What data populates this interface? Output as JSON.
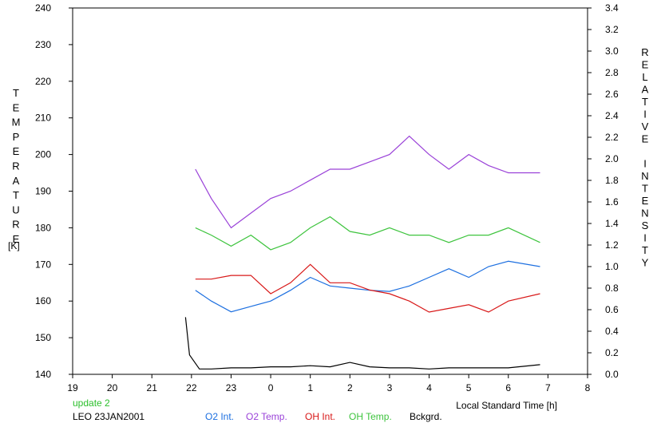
{
  "chart_data": {
    "type": "line",
    "title": "",
    "xlabel": "Local Standard Time [h]",
    "ylabel_left": "TEMPERATURE",
    "ylabel_left_unit": "[K]",
    "ylabel_right": "RELATIVE INTENSITY",
    "x_tick_labels": [
      "19",
      "20",
      "21",
      "22",
      "23",
      "0",
      "1",
      "2",
      "3",
      "4",
      "5",
      "6",
      "7",
      "8"
    ],
    "x_tick_positions": [
      19,
      20,
      21,
      22,
      23,
      24,
      25,
      26,
      27,
      28,
      29,
      30,
      31,
      32
    ],
    "xlim": [
      19,
      32
    ],
    "ylim_left": [
      140,
      240
    ],
    "y_left_ticks": [
      "140",
      "150",
      "160",
      "170",
      "180",
      "190",
      "200",
      "210",
      "220",
      "230",
      "240"
    ],
    "ylim_right": [
      0,
      3.4
    ],
    "y_right_ticks": [
      "0.0",
      "0.2",
      "0.4",
      "0.6",
      "0.8",
      "1.0",
      "1.2",
      "1.4",
      "1.6",
      "1.8",
      "2.0",
      "2.2",
      "2.4",
      "2.6",
      "2.8",
      "3.0",
      "3.2",
      "3.4"
    ],
    "grid": false,
    "annotations": {
      "update": "update 2",
      "station": "LEO 23JAN2001"
    },
    "legend": [
      "O2 Int.",
      "O2 Temp.",
      "OH Int.",
      "OH Temp.",
      "Bckgrd."
    ],
    "series": [
      {
        "name": "O2 Int.",
        "axis": "right",
        "color": "#1c6fe0",
        "x": [
          22.1,
          22.5,
          23.0,
          23.5,
          24.0,
          24.5,
          25.0,
          25.5,
          26.0,
          26.5,
          27.0,
          27.5,
          28.0,
          28.5,
          29.0,
          29.5,
          30.0,
          30.8
        ],
        "y": [
          0.78,
          0.68,
          0.58,
          0.63,
          0.68,
          0.78,
          0.9,
          0.82,
          0.8,
          0.78,
          0.77,
          0.82,
          0.9,
          0.98,
          0.9,
          1.0,
          1.05,
          1.0
        ]
      },
      {
        "name": "O2 Temp.",
        "axis": "left",
        "color": "#9a42d8",
        "x": [
          22.1,
          22.5,
          23.0,
          23.5,
          24.0,
          24.5,
          25.0,
          25.5,
          26.0,
          26.5,
          27.0,
          27.5,
          28.0,
          28.5,
          29.0,
          29.5,
          30.0,
          30.8
        ],
        "y": [
          196,
          188,
          180,
          184,
          188,
          190,
          193,
          196,
          196,
          198,
          200,
          205,
          200,
          196,
          200,
          197,
          195,
          195
        ]
      },
      {
        "name": "OH Int.",
        "axis": "left",
        "color": "#d81818",
        "x": [
          22.1,
          22.5,
          23.0,
          23.5,
          24.0,
          24.5,
          25.0,
          25.5,
          26.0,
          26.5,
          27.0,
          27.5,
          28.0,
          28.5,
          29.0,
          29.5,
          30.0,
          30.8
        ],
        "y": [
          166,
          166,
          167,
          167,
          162,
          165,
          170,
          165,
          165,
          163,
          162,
          160,
          157,
          158,
          159,
          157,
          160,
          162
        ]
      },
      {
        "name": "OH Temp.",
        "axis": "left",
        "color": "#3ec43e",
        "x": [
          22.1,
          22.5,
          23.0,
          23.5,
          24.0,
          24.5,
          25.0,
          25.5,
          26.0,
          26.5,
          27.0,
          27.5,
          28.0,
          28.5,
          29.0,
          29.5,
          30.0,
          30.8
        ],
        "y": [
          180,
          178,
          175,
          178,
          174,
          176,
          180,
          183,
          179,
          178,
          180,
          178,
          178,
          176,
          178,
          178,
          180,
          176
        ]
      },
      {
        "name": "Bckgrd.",
        "axis": "right",
        "color": "#000000",
        "x": [
          21.85,
          21.95,
          22.2,
          22.5,
          23.0,
          23.5,
          24.0,
          24.5,
          25.0,
          25.5,
          26.0,
          26.5,
          27.0,
          27.5,
          28.0,
          28.5,
          29.0,
          29.5,
          30.0,
          30.8
        ],
        "y": [
          0.53,
          0.18,
          0.05,
          0.05,
          0.06,
          0.06,
          0.07,
          0.07,
          0.08,
          0.07,
          0.11,
          0.07,
          0.06,
          0.06,
          0.05,
          0.06,
          0.06,
          0.06,
          0.06,
          0.09
        ]
      }
    ]
  }
}
